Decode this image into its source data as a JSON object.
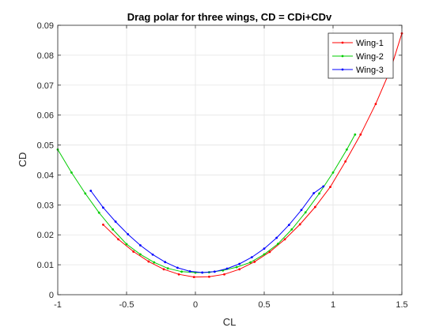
{
  "chart_data": {
    "type": "line",
    "title": "Drag polar for three wings, CD = CDi+CDv",
    "xlabel": "CL",
    "ylabel": "CD",
    "xlim": [
      -1,
      1.5
    ],
    "ylim": [
      0,
      0.09
    ],
    "x_ticks": [
      -1,
      -0.5,
      0,
      0.5,
      1,
      1.5
    ],
    "x_tick_labels": [
      "-1",
      "-0.5",
      "0",
      "0.5",
      "1",
      "1.5"
    ],
    "y_ticks": [
      0,
      0.01,
      0.02,
      0.03,
      0.04,
      0.05,
      0.06,
      0.07,
      0.08,
      0.09
    ],
    "y_tick_labels": [
      "0",
      "0.01",
      "0.02",
      "0.03",
      "0.04",
      "0.05",
      "0.06",
      "0.07",
      "0.08",
      "0.09"
    ],
    "grid": true,
    "legend_position": "top-right",
    "series": [
      {
        "name": "Wing-1",
        "color": "#ff0000",
        "marker": "dot",
        "x": [
          -0.67,
          -0.56,
          -0.45,
          -0.34,
          -0.23,
          -0.12,
          -0.01,
          0.1,
          0.21,
          0.32,
          0.43,
          0.54,
          0.65,
          0.76,
          0.87,
          0.98,
          1.09,
          1.2,
          1.31,
          1.42,
          1.5
        ],
        "y": [
          0.0234,
          0.0185,
          0.0144,
          0.0111,
          0.0085,
          0.0068,
          0.0059,
          0.006,
          0.0068,
          0.0085,
          0.011,
          0.0143,
          0.0185,
          0.0235,
          0.0293,
          0.036,
          0.0445,
          0.0535,
          0.0637,
          0.0755,
          0.0873
        ]
      },
      {
        "name": "Wing-2",
        "color": "#00cc00",
        "marker": "dot",
        "x": [
          -1.0,
          -0.9,
          -0.8,
          -0.7,
          -0.6,
          -0.5,
          -0.4,
          -0.3,
          -0.2,
          -0.1,
          0.0,
          0.1,
          0.2,
          0.3,
          0.4,
          0.5,
          0.6,
          0.7,
          0.8,
          0.9,
          1.0,
          1.1,
          1.16
        ],
        "y": [
          0.0485,
          0.0408,
          0.0338,
          0.0274,
          0.0218,
          0.0169,
          0.0135,
          0.0108,
          0.0088,
          0.0077,
          0.0074,
          0.0075,
          0.0081,
          0.0092,
          0.0108,
          0.0135,
          0.017,
          0.0218,
          0.0275,
          0.0338,
          0.0408,
          0.0485,
          0.0535
        ]
      },
      {
        "name": "Wing-3",
        "color": "#0000ff",
        "marker": "dot",
        "x": [
          -0.76,
          -0.67,
          -0.58,
          -0.49,
          -0.4,
          -0.31,
          -0.22,
          -0.13,
          -0.04,
          0.05,
          0.14,
          0.23,
          0.32,
          0.41,
          0.5,
          0.59,
          0.68,
          0.77,
          0.86,
          0.93
        ],
        "y": [
          0.0347,
          0.0291,
          0.0244,
          0.0202,
          0.0165,
          0.0134,
          0.0109,
          0.009,
          0.0078,
          0.0074,
          0.0077,
          0.0087,
          0.0103,
          0.0125,
          0.0154,
          0.019,
          0.0233,
          0.0283,
          0.0339,
          0.0362
        ]
      }
    ]
  }
}
